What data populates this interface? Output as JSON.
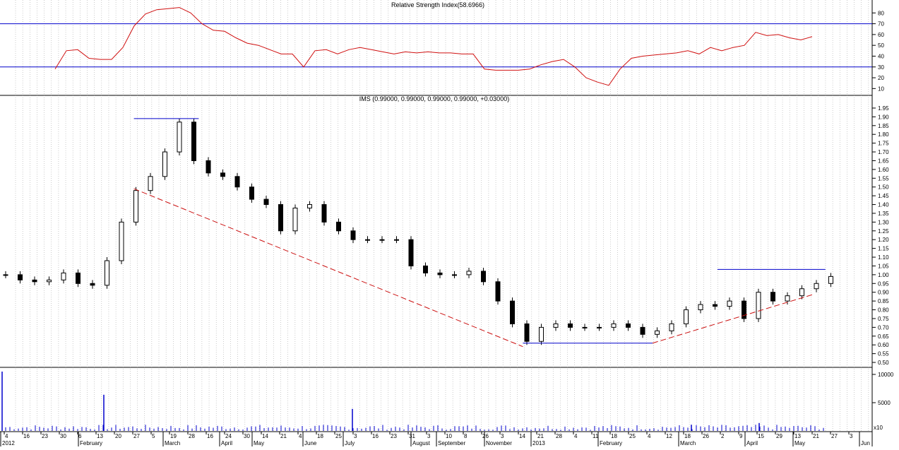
{
  "chart_data": [
    {
      "panel": "rsi",
      "type": "line",
      "title": "Relative Strength Index(58.6966)",
      "ylim": [
        5,
        90
      ],
      "yticks": [
        10,
        20,
        30,
        40,
        50,
        60,
        70,
        80
      ],
      "reference_lines": [
        70,
        30
      ],
      "colors": {
        "line": "#d01010",
        "reference": "#0000cc"
      },
      "series": [
        {
          "x_weeks": [
            0,
            1,
            2,
            3,
            4,
            5,
            6,
            7,
            8,
            9,
            10,
            11,
            12,
            13,
            14,
            15,
            16,
            17,
            18,
            19,
            20,
            21,
            22,
            23,
            24,
            25,
            26,
            27,
            28,
            29,
            30,
            31,
            32,
            33,
            34,
            35,
            36,
            37,
            38,
            39,
            40,
            41,
            42,
            43,
            44,
            45,
            46,
            47,
            48,
            49,
            50,
            51,
            52,
            53,
            54,
            55,
            56,
            57,
            58,
            59,
            60,
            61,
            62,
            63,
            64,
            65,
            66,
            67
          ],
          "values": [
            28,
            45,
            46,
            38,
            37,
            37,
            48,
            68,
            79,
            83,
            84,
            85,
            80,
            70,
            64,
            63,
            57,
            52,
            50,
            46,
            42,
            42,
            30,
            45,
            46,
            42,
            46,
            48,
            46,
            44,
            42,
            44,
            43,
            44,
            43,
            43,
            42,
            42,
            28,
            27,
            27,
            27,
            28,
            32,
            35,
            37,
            30,
            20,
            16,
            13,
            28,
            38,
            40,
            41,
            42,
            43,
            45,
            42,
            48,
            45,
            48,
            50,
            62,
            59,
            60,
            57,
            55,
            58
          ]
        }
      ]
    },
    {
      "panel": "price",
      "type": "candlestick",
      "title": "IMS (0.99000, 0.99000, 0.99000, 0.99000, +0.03000)",
      "ylim": [
        0.48,
        1.97
      ],
      "yticks": [
        "0.50",
        "0.55",
        "0.60",
        "0.65",
        "0.70",
        "0.75",
        "0.80",
        "0.85",
        "0.90",
        "0.95",
        "1.00",
        "1.05",
        "1.10",
        "1.15",
        "1.20",
        "1.25",
        "1.30",
        "1.35",
        "1.40",
        "1.45",
        "1.50",
        "1.55",
        "1.60",
        "1.65",
        "1.70",
        "1.75",
        "1.80",
        "1.85",
        "1.90",
        "1.95"
      ],
      "colors": {
        "candle": "#000000",
        "trendline": "#cc1111",
        "level": "#0000cc"
      },
      "estimated_closes_weekly": [
        1.0,
        0.97,
        0.96,
        0.97,
        1.01,
        0.95,
        0.94,
        1.08,
        1.3,
        1.48,
        1.56,
        1.7,
        1.87,
        1.65,
        1.58,
        1.56,
        1.5,
        1.43,
        1.4,
        1.25,
        1.38,
        1.4,
        1.3,
        1.25,
        1.2,
        1.2,
        1.2,
        1.2,
        1.05,
        1.01,
        1.0,
        1.0,
        1.02,
        0.96,
        0.85,
        0.72,
        0.62,
        0.7,
        0.72,
        0.7,
        0.7,
        0.7,
        0.72,
        0.7,
        0.66,
        0.68,
        0.72,
        0.8,
        0.83,
        0.82,
        0.85,
        0.75,
        0.9,
        0.85,
        0.88,
        0.92,
        0.95,
        0.99
      ],
      "resistance_levels": [
        {
          "price": 1.89,
          "from_week": 12,
          "to_week": 18
        },
        {
          "price": 0.61,
          "from_week": 48,
          "to_week": 60
        },
        {
          "price": 1.03,
          "from_week": 66,
          "to_week": 76
        }
      ],
      "trendlines": [
        {
          "from": {
            "week": 12,
            "price": 1.49
          },
          "to": {
            "week": 48,
            "price": 0.59
          }
        },
        {
          "from": {
            "week": 60,
            "price": 0.61
          },
          "to": {
            "week": 75,
            "price": 0.89
          }
        }
      ]
    },
    {
      "panel": "volume",
      "type": "bar",
      "ylim": [
        0,
        11000
      ],
      "yticks": [
        "10000",
        "5000"
      ],
      "colors": {
        "bars": "#0000cc"
      },
      "notable_volumes": [
        {
          "week": 0,
          "value": 10500
        },
        {
          "week": 9,
          "value": 6400
        },
        {
          "week": 31,
          "value": 3900
        },
        {
          "week": 61,
          "value": 1100
        },
        {
          "week": 67,
          "value": 1400
        }
      ],
      "unit_label": "x10"
    }
  ],
  "x_axis": {
    "day_labels": [
      "4",
      "16",
      "23",
      "30",
      "6",
      "13",
      "20",
      "27",
      "5",
      "19",
      "28",
      "16",
      "24",
      "30",
      "14",
      "21",
      "4",
      "18",
      "25",
      "3",
      "16",
      "23",
      "31",
      "3",
      "10",
      "8",
      "26",
      "3",
      "14",
      "21",
      "28",
      "4",
      "11",
      "18",
      "25",
      "4",
      "12",
      "18",
      "26",
      "2",
      "9",
      "15",
      "29",
      "13",
      "21",
      "27",
      "3"
    ],
    "month_labels": [
      "2012",
      "February",
      "March",
      "April",
      "May",
      "June",
      "July",
      "August",
      "September",
      "November",
      "2013",
      "February",
      "March",
      "April",
      "May",
      "Jun"
    ]
  }
}
